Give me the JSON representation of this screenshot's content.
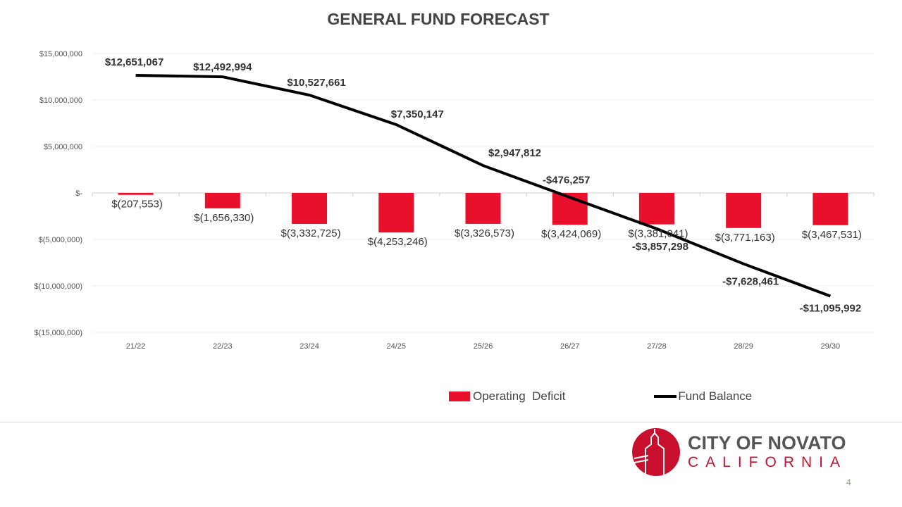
{
  "chart_data": {
    "type": "bar+line",
    "title": "GENERAL FUND FORECAST",
    "categories": [
      "21/22",
      "22/23",
      "23/24",
      "24/25",
      "25/26",
      "26/27",
      "27/28",
      "28/29",
      "29/30"
    ],
    "ylim": [
      -15000000,
      15000000
    ],
    "yticks": [
      15000000,
      10000000,
      5000000,
      0,
      -5000000,
      -10000000,
      -15000000
    ],
    "ytick_labels": [
      "$15,000,000",
      "$10,000,000",
      "$5,000,000",
      "$-",
      "$(5,000,000)",
      "$(10,000,000)",
      "$(15,000,000)"
    ],
    "grid": true,
    "legend_position": "bottom",
    "series": [
      {
        "name": "Operating  Deficit",
        "type": "bar",
        "color": "#e8102a",
        "values": [
          -207553,
          -1656330,
          -3332725,
          -4253246,
          -3326573,
          -3424069,
          -3381041,
          -3771163,
          -3467531
        ],
        "labels": [
          "$(207,553)",
          "$(1,656,330)",
          "$(3,332,725)",
          "$(4,253,246)",
          "$(3,326,573)",
          "$(3,424,069)",
          "$(3,381,041)",
          "$(3,771,163)",
          "$(3,467,531)"
        ]
      },
      {
        "name": "Fund Balance",
        "type": "line",
        "color": "#000000",
        "values": [
          12651067,
          12492994,
          10527661,
          7350147,
          2947812,
          -476257,
          -3857298,
          -7628461,
          -11095992
        ],
        "labels": [
          "$12,651,067",
          "$12,492,994",
          "$10,527,661",
          "$7,350,147",
          "$2,947,812",
          "-$476,257",
          "-$3,857,298",
          "-$7,628,461",
          "-$11,095,992"
        ]
      }
    ]
  },
  "logo": {
    "line1": "CITY OF NOVATO",
    "line2": "CALIFORNIA"
  },
  "page_number": "4"
}
